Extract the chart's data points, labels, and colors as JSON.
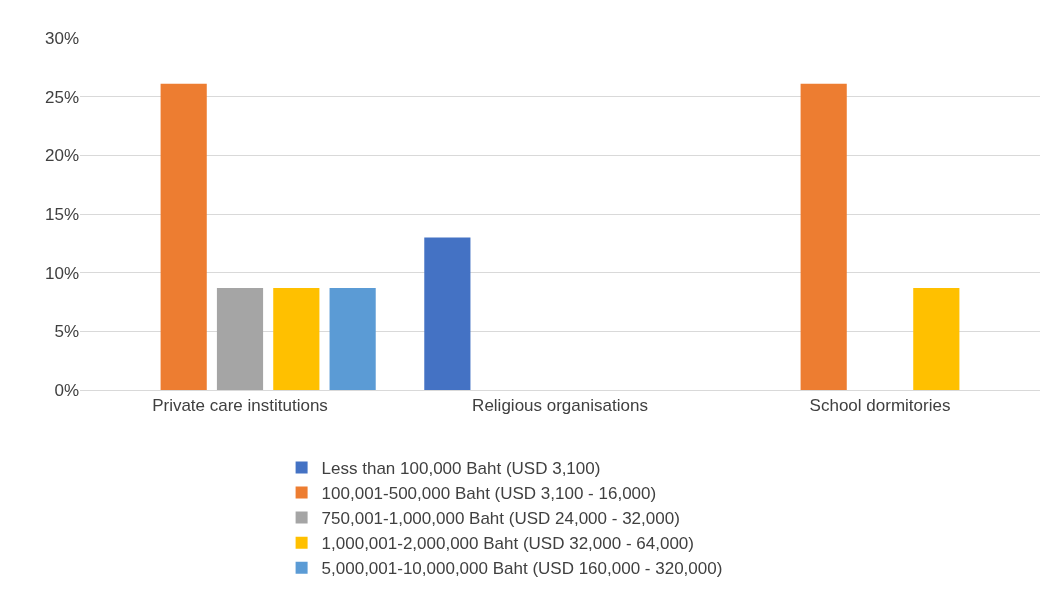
{
  "chart_data": {
    "type": "bar",
    "categories": [
      "Private care institutions",
      "Religious organisations",
      "School dormitories"
    ],
    "series": [
      {
        "name": "Less than 100,000 Baht (USD 3,100)",
        "color": "#4472c4",
        "values": [
          0,
          13.0,
          0
        ]
      },
      {
        "name": "100,001-500,000 Baht (USD 3,100 - 16,000)",
        "color": "#ed7d31",
        "values": [
          26.1,
          0,
          26.1
        ]
      },
      {
        "name": "750,001-1,000,000 Baht (USD 24,000 - 32,000)",
        "color": "#a5a5a5",
        "values": [
          8.7,
          0,
          0
        ]
      },
      {
        "name": "1,000,001-2,000,000 Baht (USD 32,000 - 64,000)",
        "color": "#ffc000",
        "values": [
          8.7,
          0,
          8.7
        ]
      },
      {
        "name": "5,000,001-10,000,000 Baht (USD 160,000 - 320,000)",
        "color": "#5b9bd5",
        "values": [
          8.7,
          0,
          0
        ]
      }
    ],
    "ylim": [
      0,
      30
    ],
    "yticks": [
      {
        "value": 0,
        "label": "0%"
      },
      {
        "value": 5,
        "label": "5%"
      },
      {
        "value": 10,
        "label": "10%"
      },
      {
        "value": 15,
        "label": "15%"
      },
      {
        "value": 20,
        "label": "20%"
      },
      {
        "value": 25,
        "label": "25%"
      },
      {
        "value": 30,
        "label": "30%"
      }
    ],
    "grid": "y",
    "legend": "bottom"
  }
}
